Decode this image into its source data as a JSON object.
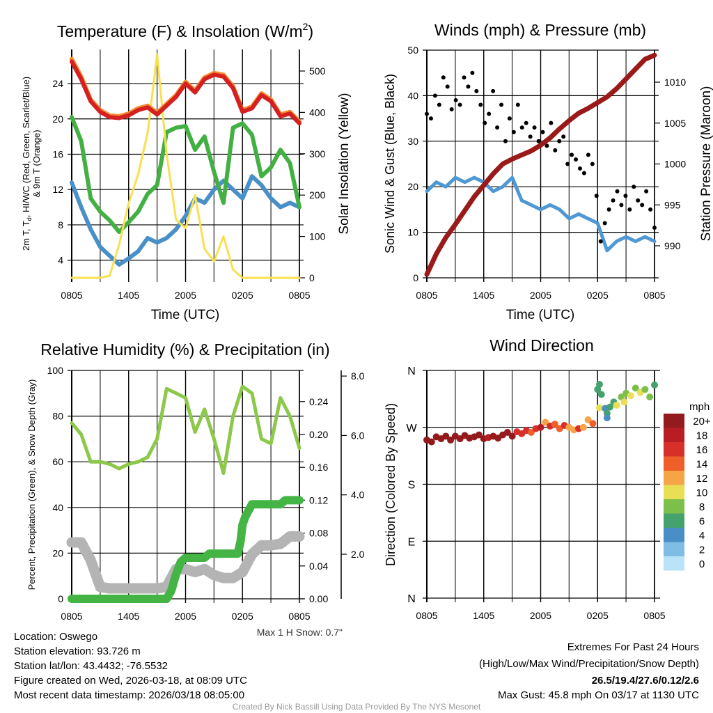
{
  "colors": {
    "temp": "#d42020",
    "temp9m": "#f58a30",
    "dewpoint": "#44b044",
    "windchill": "#4a90c8",
    "solar": "#f8e050",
    "wind": "#4f98d4",
    "gust": "#000000",
    "pressure": "#9a1a1a",
    "rh": "#8cc84a",
    "precip": "#44b444",
    "snow": "#b4b4b4",
    "extremes": "#d42020",
    "credit": "#999999"
  },
  "time_ticks": [
    "0805",
    "1405",
    "2005",
    "0205",
    "0805"
  ],
  "chart_data": [
    {
      "type": "line",
      "title_main": "Temperature (F) & Insolation (W/m",
      "title_sup": "2",
      "title_end": ")",
      "xlabel": "Time (UTC)",
      "ylabel_a": "2m T, T",
      "ylabel_sub": "d",
      "ylabel_b": ", HI/WC (Red, Green, Scarlet/Blue)",
      "ylabel_line2": "& 9m T (Orange)",
      "y2label": "Solar Insolation (Yellow)",
      "yticks": [
        4,
        8,
        12,
        16,
        20,
        24
      ],
      "y2ticks": [
        0,
        100,
        200,
        300,
        400,
        500
      ],
      "ylim": [
        2,
        27.8
      ],
      "y2lim": [
        0,
        555
      ],
      "x_hours": [
        0,
        1,
        2,
        3,
        4,
        5,
        6,
        7,
        8,
        9,
        10,
        11,
        12,
        13,
        14,
        15,
        16,
        17,
        18,
        19,
        20,
        21,
        22,
        23,
        24
      ],
      "series": [
        {
          "name": "9m T",
          "values": [
            26.8,
            24.8,
            22.2,
            21,
            20.4,
            20.3,
            20.6,
            21.2,
            21.5,
            20.7,
            21.7,
            22.7,
            24.2,
            23.2,
            24.7,
            25.2,
            25,
            23.7,
            21,
            21.4,
            22.9,
            22.2,
            20.5,
            20.8,
            19.7
          ]
        },
        {
          "name": "2m T",
          "values": [
            26.5,
            24.5,
            22,
            20.8,
            20.2,
            20.1,
            20.4,
            21,
            21.3,
            20.5,
            21.5,
            22.5,
            24,
            23,
            24.5,
            25,
            24.8,
            23.5,
            20.8,
            21.2,
            22.7,
            22,
            20.3,
            20.6,
            19.5
          ]
        },
        {
          "name": "Td",
          "values": [
            20.2,
            17.5,
            11,
            9.5,
            8.5,
            7.2,
            8.3,
            9.5,
            11.5,
            12.5,
            18.5,
            19,
            19.2,
            16.5,
            18,
            14,
            10.5,
            19,
            19.5,
            18.2,
            13.5,
            14.5,
            16.5,
            15,
            10
          ]
        },
        {
          "name": "WC",
          "values": [
            12.8,
            10,
            7.5,
            5.5,
            4.5,
            3.5,
            4.2,
            5,
            6.5,
            6,
            6.5,
            7.5,
            9,
            11,
            10.5,
            12,
            13,
            12,
            11,
            13.5,
            12.5,
            11,
            10,
            10.5,
            10
          ]
        },
        {
          "name": "Solar",
          "values": [
            0,
            0,
            0,
            0,
            5,
            80,
            180,
            250,
            350,
            540,
            300,
            140,
            120,
            200,
            70,
            40,
            100,
            20,
            0,
            0,
            0,
            0,
            0,
            0,
            0
          ]
        }
      ]
    },
    {
      "type": "line",
      "title": "Winds (mph) & Pressure (mb)",
      "xlabel": "Time (UTC)",
      "ylabel": "Sonic Wind & Gust (Blue, Black)",
      "y2label": "Station Pressure (Maroon)",
      "yticks": [
        0,
        10,
        20,
        30,
        40,
        50
      ],
      "y2ticks": [
        990,
        995,
        1000,
        1005,
        1010
      ],
      "ylim": [
        0,
        50
      ],
      "y2lim": [
        986.1,
        1013.7
      ],
      "x_hours": [
        0,
        1,
        2,
        3,
        4,
        5,
        6,
        7,
        8,
        9,
        10,
        11,
        12,
        13,
        14,
        15,
        16,
        17,
        18,
        19,
        20,
        21,
        22,
        23,
        24
      ],
      "wind": [
        19,
        21,
        20,
        22,
        21,
        22,
        21,
        19,
        20,
        22,
        17,
        16,
        15,
        16,
        15,
        13,
        14,
        13,
        12,
        6,
        8,
        9,
        8,
        9,
        8
      ],
      "pressure": [
        986.5,
        989,
        991,
        992.6,
        994.3,
        996,
        997.4,
        998.8,
        1000,
        1000.6,
        1001.1,
        1001.6,
        1002.3,
        1003.2,
        1004.3,
        1005.3,
        1006.2,
        1006.8,
        1007.5,
        1008.2,
        1009.2,
        1010.4,
        1011.6,
        1012.8,
        1013.3
      ],
      "gust_step_hours": 0.5,
      "gust": [
        36,
        35,
        40,
        38,
        44,
        42,
        37,
        39,
        38,
        44,
        42,
        45,
        41,
        38,
        34,
        36,
        41,
        33,
        38,
        30,
        35,
        32,
        38,
        33,
        34,
        31,
        33,
        30,
        32,
        29,
        34,
        28,
        30,
        31,
        25,
        27,
        26,
        24,
        23,
        27,
        25,
        18,
        8,
        12,
        15,
        17,
        19,
        16,
        18,
        15,
        20,
        17,
        16,
        19,
        15,
        11
      ]
    },
    {
      "type": "line",
      "title": "Relative Humidity (%) & Precipitation (in)",
      "xlabel": "",
      "ylabel": "Percent, Precipitation (Green), & Snow Depth (Gray)",
      "yticks": [
        0,
        20,
        40,
        60,
        80,
        100
      ],
      "y2ticks": [
        "0.00",
        "0.04",
        "0.08",
        "0.12",
        "0.16",
        "0.20",
        "0.24"
      ],
      "y3ticks": [
        "2.0",
        "4.0",
        "6.0",
        "8.0"
      ],
      "ylim": [
        0,
        100
      ],
      "y2lim": [
        0,
        0.278
      ],
      "y3lim": [
        0.5,
        8.2
      ],
      "note": "Max 1 H Snow: 0.7\"",
      "x_hours": [
        0,
        1,
        2,
        3,
        4,
        5,
        6,
        7,
        8,
        9,
        10,
        11,
        12,
        13,
        14,
        15,
        16,
        17,
        18,
        19,
        20,
        21,
        22,
        23,
        24
      ],
      "rh": [
        77,
        72,
        60,
        60,
        59,
        57,
        59,
        60,
        62,
        70,
        92,
        90,
        88,
        73,
        83,
        70,
        55,
        80,
        93,
        90,
        70,
        68,
        88,
        80,
        66
      ],
      "precip": [
        [
          0,
          0
        ],
        [
          10,
          0
        ],
        [
          10.5,
          0.01
        ],
        [
          11,
          0.03
        ],
        [
          11.5,
          0.045
        ],
        [
          12,
          0.05
        ],
        [
          14,
          0.05
        ],
        [
          14.5,
          0.055
        ],
        [
          17.5,
          0.055
        ],
        [
          17.8,
          0.07
        ],
        [
          18,
          0.09
        ],
        [
          18.3,
          0.1
        ],
        [
          19,
          0.115
        ],
        [
          22,
          0.115
        ],
        [
          22.5,
          0.12
        ],
        [
          24,
          0.12
        ]
      ],
      "snow": [
        [
          0,
          2.4
        ],
        [
          1,
          2.4
        ],
        [
          2,
          1.8
        ],
        [
          3,
          0.9
        ],
        [
          4,
          0.85
        ],
        [
          6,
          0.85
        ],
        [
          9,
          0.85
        ],
        [
          10,
          0.9
        ],
        [
          11,
          1.5
        ],
        [
          12,
          1.5
        ],
        [
          13,
          1.4
        ],
        [
          14,
          1.5
        ],
        [
          15,
          1.3
        ],
        [
          16,
          1.2
        ],
        [
          17,
          1.2
        ],
        [
          18,
          1.4
        ],
        [
          19,
          2.0
        ],
        [
          20,
          2.3
        ],
        [
          21,
          2.3
        ],
        [
          22,
          2.35
        ],
        [
          23,
          2.6
        ],
        [
          24,
          2.6
        ]
      ]
    },
    {
      "type": "scatter",
      "title": "Wind Direction",
      "xlabel": "",
      "ylabel": "Direction (Colored By Speed)",
      "yticks": [
        {
          "deg": 0,
          "label": "N"
        },
        {
          "deg": 90,
          "label": "E"
        },
        {
          "deg": 180,
          "label": "S"
        },
        {
          "deg": 270,
          "label": "W"
        },
        {
          "deg": 360,
          "label": "N"
        }
      ],
      "legend_title": "mph",
      "legend": [
        {
          "label": "20+",
          "color": "#931a1d",
          "min": 20
        },
        {
          "label": "18",
          "color": "#b81d24",
          "min": 18
        },
        {
          "label": "16",
          "color": "#d7302a",
          "min": 16
        },
        {
          "label": "14",
          "color": "#ef5f2a",
          "min": 14
        },
        {
          "label": "12",
          "color": "#f5a446",
          "min": 12
        },
        {
          "label": "10",
          "color": "#e8df55",
          "min": 10
        },
        {
          "label": "8",
          "color": "#7cc04b",
          "min": 8
        },
        {
          "label": "6",
          "color": "#45a26f",
          "min": 6
        },
        {
          "label": "4",
          "color": "#4a8ec6",
          "min": 4
        },
        {
          "label": "2",
          "color": "#7fbde6",
          "min": 2
        },
        {
          "label": "0",
          "color": "#b9e3f6",
          "min": 0
        }
      ],
      "points": [
        [
          0,
          250,
          21
        ],
        [
          0.5,
          247,
          20
        ],
        [
          1,
          255,
          21
        ],
        [
          1.5,
          252,
          21
        ],
        [
          2,
          256,
          21
        ],
        [
          2.5,
          250,
          20
        ],
        [
          3,
          256,
          21
        ],
        [
          3.5,
          252,
          21
        ],
        [
          4,
          257,
          21
        ],
        [
          4.5,
          253,
          21
        ],
        [
          5,
          255,
          21
        ],
        [
          5.5,
          258,
          21
        ],
        [
          6,
          252,
          20
        ],
        [
          6.5,
          254,
          19
        ],
        [
          7,
          256,
          21
        ],
        [
          7.5,
          253,
          20
        ],
        [
          8,
          258,
          21
        ],
        [
          8.5,
          262,
          21
        ],
        [
          9,
          256,
          20
        ],
        [
          9.5,
          263,
          16
        ],
        [
          10,
          260,
          17
        ],
        [
          10.5,
          265,
          16
        ],
        [
          11,
          262,
          14
        ],
        [
          11.5,
          268,
          17
        ],
        [
          12,
          270,
          18
        ],
        [
          12.5,
          278,
          12
        ],
        [
          13,
          272,
          16
        ],
        [
          13.5,
          275,
          14
        ],
        [
          14,
          268,
          14
        ],
        [
          14.5,
          273,
          16
        ],
        [
          15,
          270,
          13
        ],
        [
          15.5,
          266,
          13
        ],
        [
          16,
          268,
          16
        ],
        [
          16.5,
          270,
          12
        ],
        [
          17,
          282,
          12
        ],
        [
          17.5,
          276,
          14
        ],
        [
          18,
          330,
          6
        ],
        [
          18.2,
          338,
          6
        ],
        [
          18.4,
          322,
          6
        ],
        [
          18.2,
          301,
          10
        ],
        [
          18.8,
          300,
          4
        ],
        [
          19,
          292,
          6
        ],
        [
          19,
          285,
          4
        ],
        [
          19.3,
          302,
          6
        ],
        [
          19.7,
          310,
          6
        ],
        [
          20,
          305,
          10
        ],
        [
          20.5,
          318,
          8
        ],
        [
          20.8,
          310,
          10
        ],
        [
          21,
          324,
          8
        ],
        [
          21.5,
          320,
          10
        ],
        [
          22,
          332,
          8
        ],
        [
          22.5,
          325,
          10
        ],
        [
          23,
          330,
          8
        ],
        [
          23.5,
          318,
          8
        ],
        [
          24,
          337,
          6
        ]
      ]
    }
  ],
  "footer": {
    "location": "Location: Oswego",
    "elevation": "Station elevation: 93.726 m",
    "latlon": "Station lat/lon: 43.4432; -76.5532",
    "created": "Figure created on Wed, 2026-03-18, at 08:09 UTC",
    "recent": "Most recent data timestamp: 2026/03/18 08:05:00",
    "extremes_title": "Extremes For Past 24 Hours",
    "extremes_sub": "(High/Low/Max Wind/Precipitation/Snow Depth)",
    "extremes_values": "26.5/19.4/27.6/0.12/2.6",
    "max_gust": "Max Gust: 45.8 mph On 03/17 at 1130 UTC",
    "credit": "Created By Nick Bassill Using Data Provided By The NYS Mesonet"
  }
}
